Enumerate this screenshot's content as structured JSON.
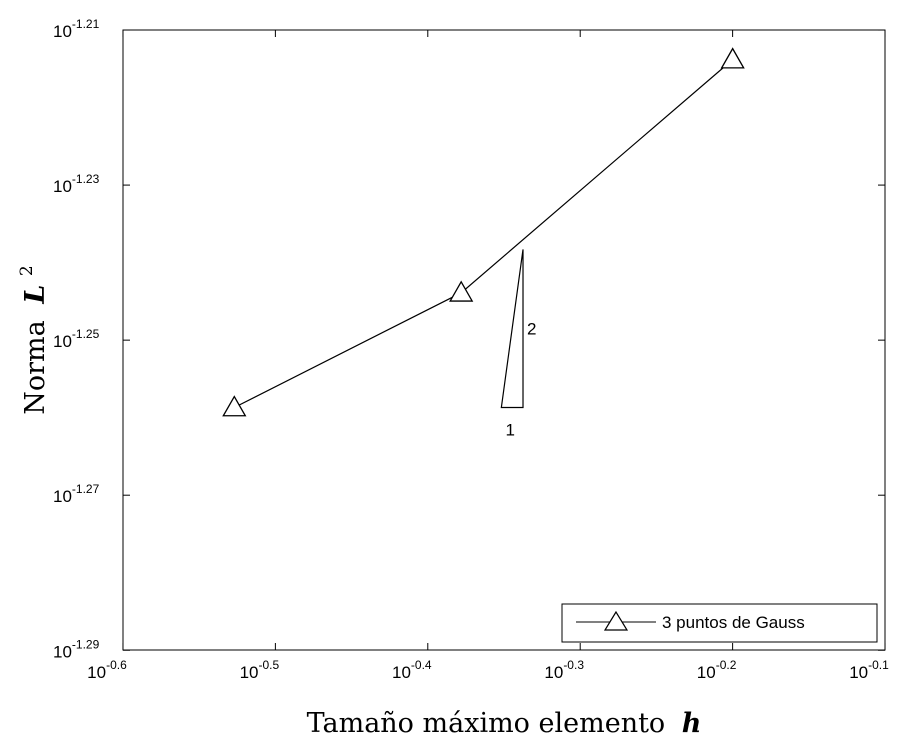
{
  "chart_data": {
    "type": "line",
    "xscale": "log",
    "yscale": "log",
    "xlim": [
      0.2512,
      0.7943
    ],
    "ylim": [
      0.05129,
      0.06166
    ],
    "x_ticks": [
      {
        "base": "10",
        "exp": "-0.6"
      },
      {
        "base": "10",
        "exp": "-0.5"
      },
      {
        "base": "10",
        "exp": "-0.4"
      },
      {
        "base": "10",
        "exp": "-0.3"
      },
      {
        "base": "10",
        "exp": "-0.2"
      },
      {
        "base": "10",
        "exp": "-0.1"
      }
    ],
    "y_ticks": [
      {
        "base": "10",
        "exp": "-1.21"
      },
      {
        "base": "10",
        "exp": "-1.23"
      },
      {
        "base": "10",
        "exp": "-1.25"
      },
      {
        "base": "10",
        "exp": "-1.27"
      },
      {
        "base": "10",
        "exp": "-1.29"
      }
    ],
    "xlabel": {
      "text": "Tamaño máximo elemento",
      "variable": "h"
    },
    "ylabel": {
      "text": "Norma",
      "variable": "L",
      "superscript": "2"
    },
    "series": [
      {
        "name": "3 puntos de Gauss",
        "marker": "triangle",
        "color": "#000000",
        "x": [
          0.2972,
          0.4187,
          0.631
        ],
        "y": [
          0.05512,
          0.05703,
          0.06112
        ]
      }
    ],
    "slope_triangle": {
      "run_label": "1",
      "rise_label": "2",
      "x": [
        0.4449,
        0.4597
      ],
      "y": [
        0.05512,
        0.05777
      ]
    },
    "legend": {
      "position": "bottom-right"
    },
    "grid": false
  }
}
